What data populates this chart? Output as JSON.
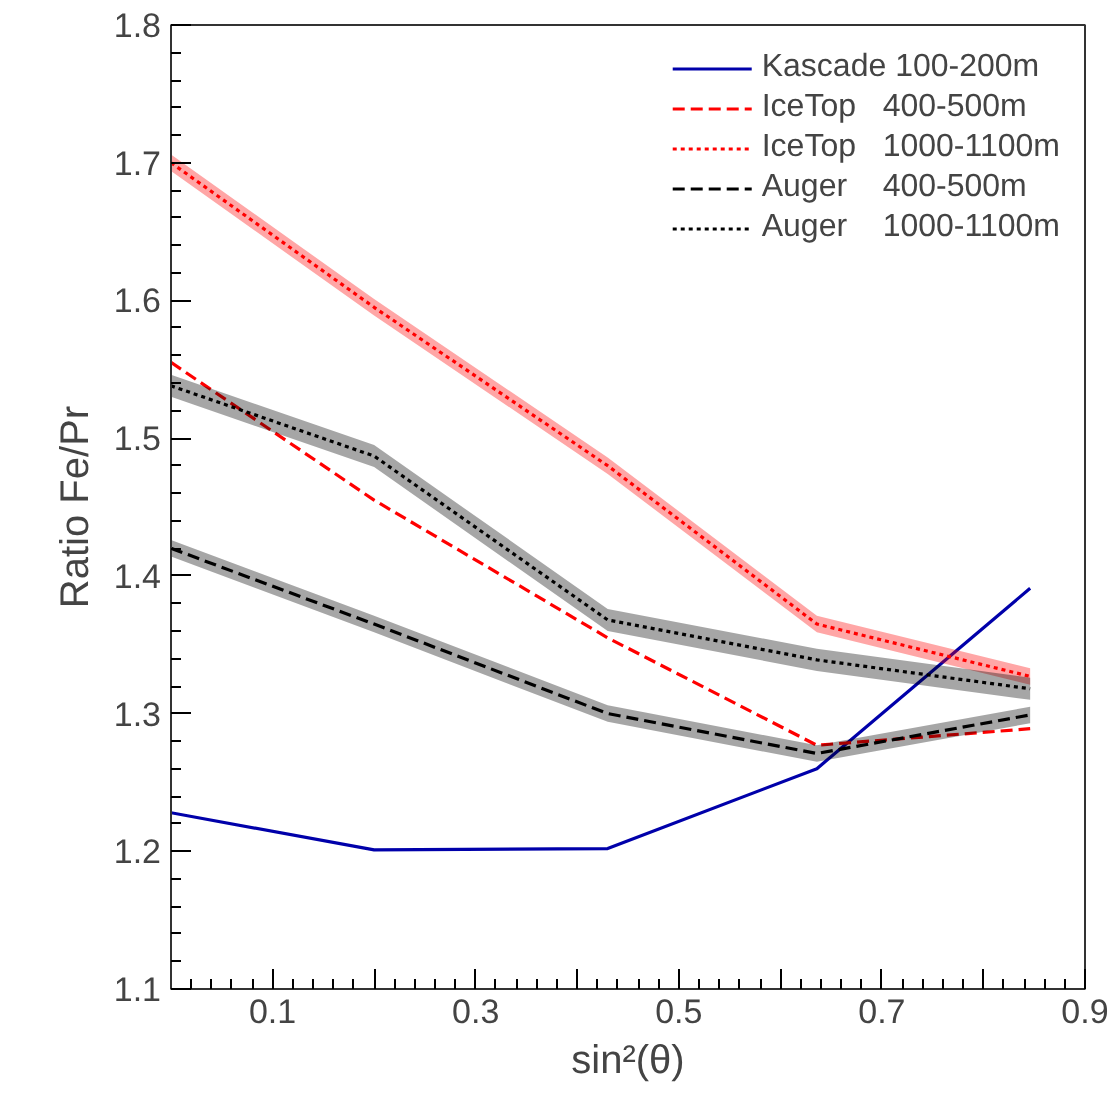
{
  "chart_data": {
    "type": "line",
    "xlabel": "sin²(θ)",
    "ylabel": "Ratio Fe/Pr",
    "x": [
      0,
      0.2,
      0.43,
      0.636,
      0.846
    ],
    "xlim": [
      0,
      0.9
    ],
    "ylim": [
      1.1,
      1.8
    ],
    "xticks": [
      {
        "value": 0,
        "label": null
      },
      0.1,
      {
        "value": 0.2,
        "label": null
      },
      0.3,
      {
        "value": 0.4,
        "label": null
      },
      0.5,
      {
        "value": 0.6,
        "label": null
      },
      0.7,
      {
        "value": 0.8,
        "label": null
      },
      0.9
    ],
    "yticks": [
      1.1,
      1.2,
      1.3,
      1.4,
      1.5,
      1.6,
      1.7,
      1.8
    ],
    "grid": false,
    "legend": "top right",
    "marker": "none",
    "series": [
      {
        "name": "Kascade 100-200m",
        "color": "#0000aa",
        "line_style": "solid",
        "values": [
          1.228,
          1.201,
          1.202,
          1.26,
          1.391
        ]
      },
      {
        "name": "IceTop   400-500m",
        "color": "#ff0000",
        "line_style": "dashed",
        "values": [
          1.555,
          1.455,
          1.355,
          1.277,
          1.289
        ]
      },
      {
        "name": "IceTop   1000-1100m",
        "color": "#ff0000",
        "line_style": "dotted",
        "values": [
          1.7,
          1.595,
          1.48,
          1.365,
          1.327
        ],
        "lower": [
          1.694,
          1.589,
          1.474,
          1.359,
          1.321
        ],
        "upper": [
          1.706,
          1.601,
          1.486,
          1.371,
          1.333
        ]
      },
      {
        "name": "Auger    400-500m",
        "color": "#000000",
        "line_style": "dashed",
        "values": [
          1.42,
          1.365,
          1.3,
          1.271,
          1.299
        ],
        "lower": [
          1.414,
          1.359,
          1.294,
          1.265,
          1.293
        ],
        "upper": [
          1.426,
          1.371,
          1.306,
          1.277,
          1.305
        ]
      },
      {
        "name": "Auger    1000-1100m",
        "color": "#000000",
        "line_style": "dotted",
        "values": [
          1.538,
          1.487,
          1.368,
          1.339,
          1.318
        ],
        "lower": [
          1.53,
          1.479,
          1.36,
          1.331,
          1.31
        ],
        "upper": [
          1.546,
          1.495,
          1.376,
          1.347,
          1.326
        ]
      }
    ]
  }
}
